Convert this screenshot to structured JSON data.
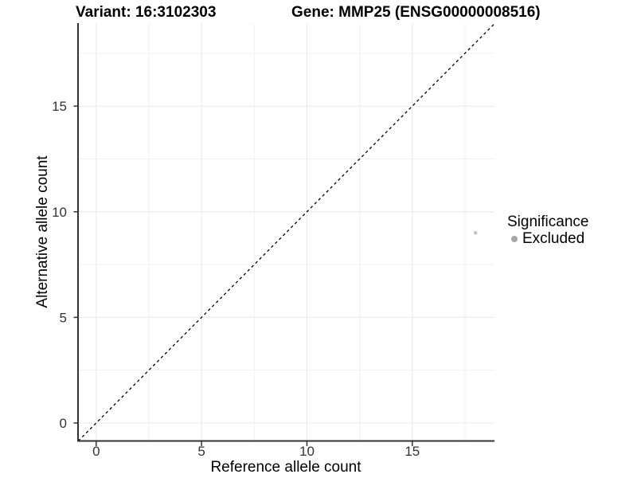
{
  "chart_data": {
    "type": "scatter",
    "title_left": "Variant: 16:3102303",
    "title_right": "Gene: MMP25 (ENSG00000008516)",
    "xlabel": "Reference allele count",
    "ylabel": "Alternative allele count",
    "xlim": [
      -0.9,
      18.9
    ],
    "ylim": [
      -0.85,
      18.93
    ],
    "xticks": [
      0,
      5,
      10,
      15
    ],
    "yticks": [
      0,
      5,
      10,
      15
    ],
    "x_minor_breaks": [
      2.5,
      7.5,
      12.5,
      17.5
    ],
    "y_minor_breaks": [
      2.5,
      7.5,
      12.5,
      17.5
    ],
    "grid": true,
    "reference_line": {
      "type": "identity",
      "slope": 1,
      "intercept": 0,
      "linetype": "dashed",
      "color": "#000000"
    },
    "series": [
      {
        "name": "Excluded",
        "color": "#c2c2c2",
        "points": [
          {
            "x": 18,
            "y": 9
          }
        ]
      }
    ],
    "legend": {
      "title": "Significance",
      "position": "right",
      "items": [
        {
          "label": "Excluded",
          "color": "#a8a8a8"
        }
      ]
    }
  },
  "style": {
    "grid_major_color": "#e8e8e8",
    "grid_minor_color": "#f1f1f1",
    "axis_color": "#333333",
    "tick_text_color": "#333333",
    "background": "#ffffff"
  }
}
